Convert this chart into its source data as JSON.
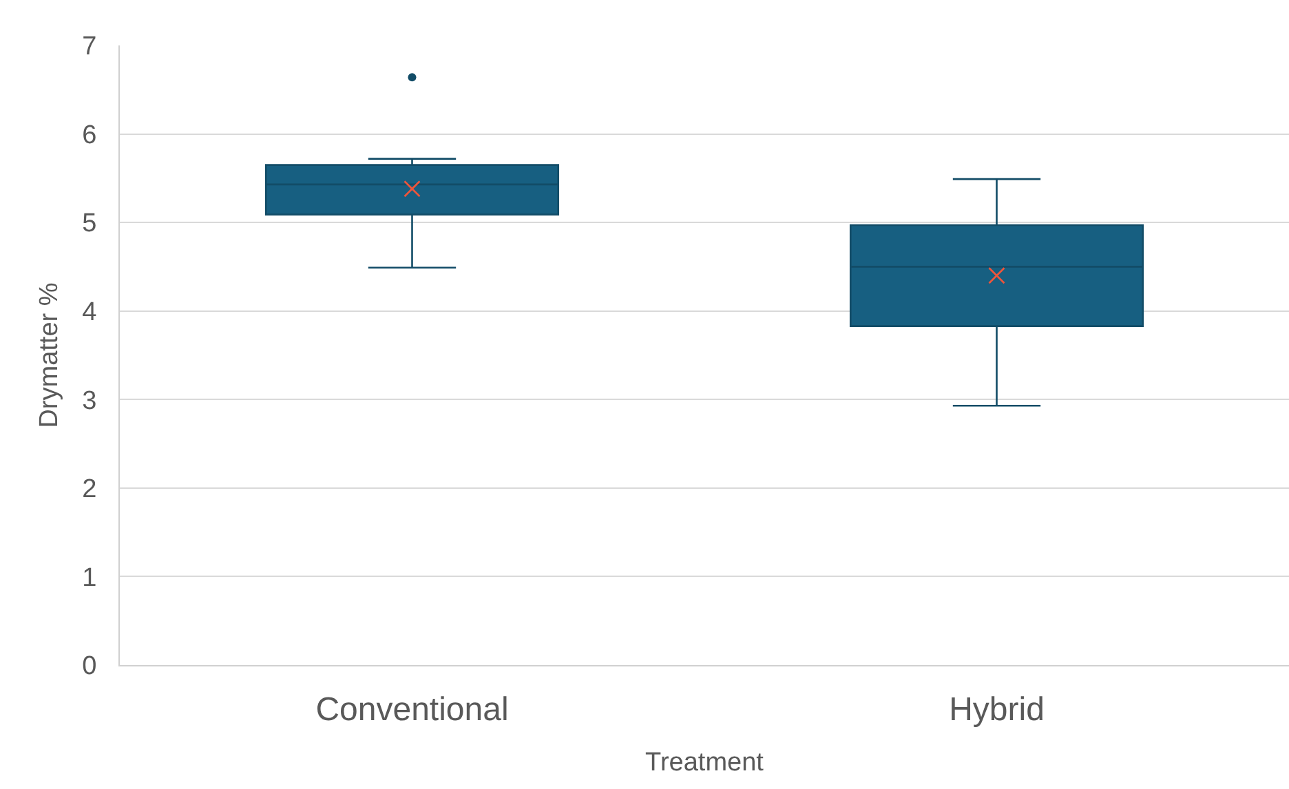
{
  "chart_data": {
    "type": "box",
    "xlabel": "Treatment",
    "ylabel": "Drymatter %",
    "categories": [
      "Conventional",
      "Hybrid"
    ],
    "color": "#175f81",
    "boxes": [
      {
        "low": 4.49,
        "q1": 5.09,
        "median": 5.43,
        "q3": 5.65,
        "high": 5.72,
        "mean": 5.38,
        "outliers": [
          6.64
        ]
      },
      {
        "low": 2.93,
        "q1": 3.83,
        "median": 4.5,
        "q3": 4.97,
        "high": 5.49,
        "mean": 4.4
      }
    ],
    "ylim": [
      0,
      7
    ],
    "yticks": [
      0,
      1,
      2,
      3,
      4,
      5,
      6,
      7
    ],
    "grid": "y"
  }
}
